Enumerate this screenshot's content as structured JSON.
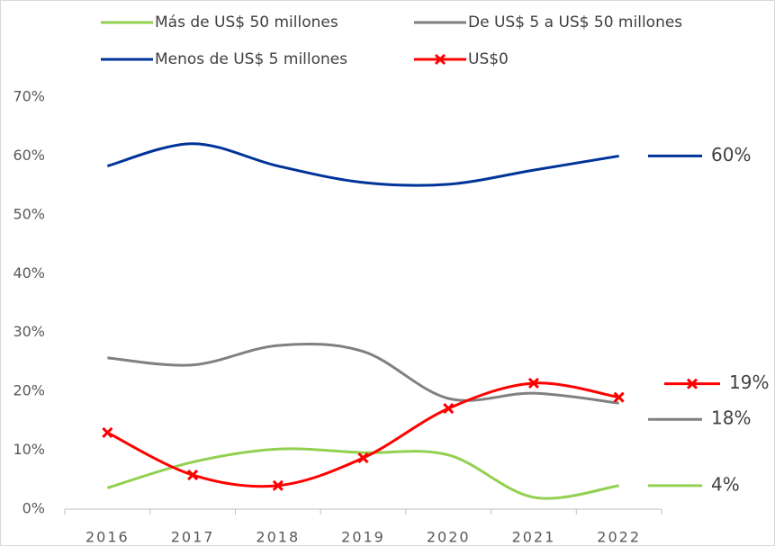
{
  "chart_data": {
    "type": "line",
    "categories": [
      "2016",
      "2017",
      "2018",
      "2019",
      "2020",
      "2021",
      "2022"
    ],
    "series": [
      {
        "name": "Más de US$ 50 millones",
        "color": "#92d050",
        "values": [
          3.6,
          8,
          10.2,
          9.6,
          9.2,
          2,
          4
        ],
        "end_label": "4%"
      },
      {
        "name": "De US$ 5 a US$ 50 millones",
        "color": "#808080",
        "values": [
          25.7,
          24.5,
          27.8,
          26.8,
          18.8,
          19.7,
          18
        ],
        "end_label": "18%"
      },
      {
        "name": "Menos de US$ 5 millones",
        "color": "#003399",
        "values": [
          58.3,
          62.1,
          58.3,
          55.5,
          55.2,
          57.6,
          60
        ],
        "end_label": "60%"
      },
      {
        "name": "US$0",
        "color": "#ff0000",
        "marker": "x",
        "values": [
          13,
          5.8,
          4,
          8.7,
          17.1,
          21.4,
          19
        ],
        "end_label": "19%"
      }
    ],
    "ylim": [
      0,
      70
    ],
    "yticks": [
      {
        "value": 0,
        "label": "0%"
      },
      {
        "value": 10,
        "label": "10%"
      },
      {
        "value": 20,
        "label": "20%"
      },
      {
        "value": 30,
        "label": "30%"
      },
      {
        "value": 40,
        "label": "40%"
      },
      {
        "value": 50,
        "label": "50%"
      },
      {
        "value": 60,
        "label": "60%"
      },
      {
        "value": 70,
        "label": "70%"
      }
    ],
    "grid": false
  }
}
